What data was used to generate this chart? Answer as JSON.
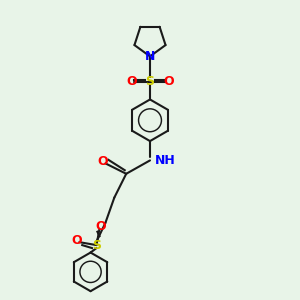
{
  "bg_color": "#e8f4e8",
  "bond_color": "#1a1a1a",
  "atom_colors": {
    "N": "#0000ff",
    "O": "#ff0000",
    "S": "#cccc00",
    "C": "#1a1a1a",
    "H": "#00aaaa"
  },
  "line_width": 1.5,
  "font_size_atom": 9,
  "font_size_small": 8
}
